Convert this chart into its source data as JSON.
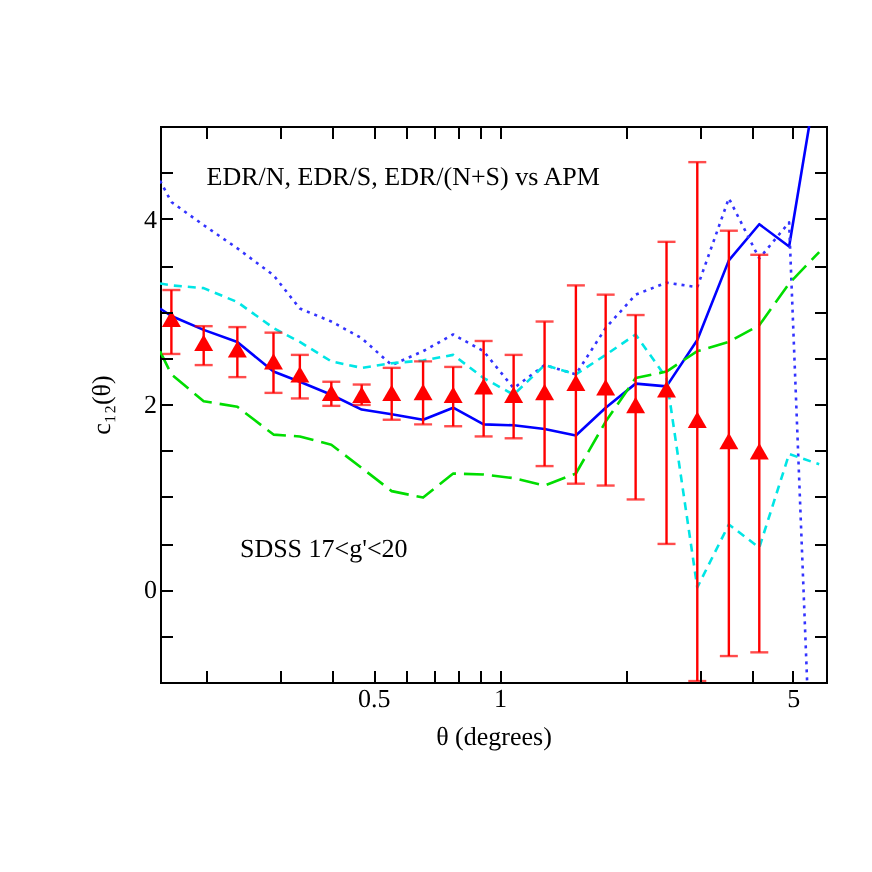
{
  "chart_data": {
    "type": "line",
    "xlabel": "θ  (degrees)",
    "ylabel": "c₁₂(θ)",
    "log": "x",
    "grid": false,
    "legend": false,
    "annotations": [
      "EDR/N, EDR/S, EDR/(N+S) vs APM",
      "SDSS   17<g'<20"
    ],
    "xlim": [
      0.155,
      6.0
    ],
    "xticks": [
      {
        "value": 0.2,
        "label": null
      },
      {
        "value": 0.3,
        "label": null
      },
      {
        "value": 0.4,
        "label": null
      },
      0.5,
      {
        "value": 0.6,
        "label": null
      },
      {
        "value": 0.7,
        "label": null
      },
      {
        "value": 0.8,
        "label": null
      },
      {
        "value": 0.9,
        "label": null
      },
      1,
      {
        "value": 2,
        "label": null
      },
      {
        "value": 3,
        "label": null
      },
      {
        "value": 4,
        "label": null
      },
      5
    ],
    "ylim": [
      -1,
      5
    ],
    "yticks": [
      {
        "value": -0.5,
        "label": null
      },
      0,
      {
        "value": 0.5,
        "label": null
      },
      {
        "value": 1,
        "label": null
      },
      {
        "value": 1.5,
        "label": null
      },
      2,
      {
        "value": 2.5,
        "label": null
      },
      {
        "value": 3,
        "label": null
      },
      {
        "value": 3.5,
        "label": null
      },
      4,
      {
        "value": 4.5,
        "label": null
      }
    ],
    "series": [
      {
        "color": "#0000ff",
        "line_style": "solid",
        "x": [
          0.155,
          0.165,
          0.197,
          0.237,
          0.289,
          0.334,
          0.397,
          0.469,
          0.553,
          0.657,
          0.775,
          0.916,
          1.08,
          1.28,
          1.52,
          1.79,
          2.11,
          2.5,
          2.96,
          3.52,
          4.16,
          4.9,
          5.47
        ],
        "values": [
          3.03,
          2.95,
          2.8,
          2.67,
          2.35,
          2.24,
          2.1,
          1.94,
          1.89,
          1.83,
          1.96,
          1.78,
          1.77,
          1.73,
          1.66,
          1.96,
          2.22,
          2.19,
          2.69,
          3.55,
          3.94,
          3.7,
          5.0
        ]
      },
      {
        "color": "#3333ff",
        "line_style": "dotted",
        "x": [
          0.155,
          0.165,
          0.197,
          0.237,
          0.289,
          0.334,
          0.397,
          0.469,
          0.553,
          0.657,
          0.775,
          0.916,
          1.08,
          1.28,
          1.52,
          1.79,
          2.11,
          2.5,
          2.96,
          3.52,
          4.16,
          4.9,
          5.41
        ],
        "values": [
          4.41,
          4.18,
          3.93,
          3.68,
          3.39,
          3.03,
          2.89,
          2.71,
          2.42,
          2.57,
          2.75,
          2.57,
          2.17,
          2.42,
          2.32,
          2.82,
          3.18,
          3.31,
          3.26,
          4.22,
          3.57,
          3.96,
          -1
        ]
      },
      {
        "color": "#00e5e5",
        "line_style": "dashed",
        "x": [
          0.155,
          0.165,
          0.197,
          0.237,
          0.289,
          0.334,
          0.397,
          0.469,
          0.553,
          0.657,
          0.775,
          0.916,
          1.08,
          1.28,
          1.52,
          1.79,
          2.11,
          2.5,
          2.96,
          3.52,
          4.16,
          4.9,
          5.78
        ],
        "values": [
          3.3,
          3.28,
          3.25,
          3.1,
          2.82,
          2.67,
          2.46,
          2.39,
          2.44,
          2.47,
          2.53,
          2.28,
          2.1,
          2.42,
          2.32,
          2.53,
          2.75,
          2.28,
          0.02,
          0.7,
          0.45,
          1.46,
          1.35
        ]
      },
      {
        "color": "#00dd00",
        "line_style": "dashed",
        "x": [
          0.155,
          0.165,
          0.197,
          0.237,
          0.289,
          0.334,
          0.397,
          0.469,
          0.553,
          0.657,
          0.775,
          0.916,
          1.08,
          1.28,
          1.52,
          1.79,
          2.11,
          2.5,
          2.96,
          3.52,
          4.16,
          4.9,
          5.78
        ],
        "values": [
          2.57,
          2.32,
          2.03,
          1.97,
          1.67,
          1.65,
          1.56,
          1.31,
          1.06,
          0.99,
          1.25,
          1.24,
          1.2,
          1.12,
          1.25,
          1.81,
          2.28,
          2.35,
          2.57,
          2.67,
          2.85,
          3.3,
          3.64
        ]
      },
      {
        "type": "scatter",
        "color": "#ff0000",
        "marker": "triangle",
        "x": [
          0.165,
          0.197,
          0.237,
          0.289,
          0.334,
          0.397,
          0.469,
          0.553,
          0.657,
          0.775,
          0.916,
          1.08,
          1.28,
          1.52,
          1.79,
          2.11,
          2.5,
          2.96,
          3.52,
          4.16
        ],
        "values": [
          2.92,
          2.66,
          2.59,
          2.46,
          2.32,
          2.12,
          2.1,
          2.12,
          2.13,
          2.1,
          2.19,
          2.1,
          2.13,
          2.23,
          2.18,
          1.99,
          2.16,
          1.83,
          1.6,
          1.49
        ],
        "errors": [
          [
            2.54,
            3.23
          ],
          [
            2.42,
            2.84
          ],
          [
            2.29,
            2.83
          ],
          [
            2.12,
            2.77
          ],
          [
            2.06,
            2.53
          ],
          [
            1.98,
            2.24
          ],
          [
            1.99,
            2.21
          ],
          [
            1.83,
            2.39
          ],
          [
            1.78,
            2.46
          ],
          [
            1.76,
            2.4
          ],
          [
            1.65,
            2.68
          ],
          [
            1.63,
            2.53
          ],
          [
            1.33,
            2.89
          ],
          [
            1.14,
            3.28
          ],
          [
            1.12,
            3.18
          ],
          [
            0.97,
            2.96
          ],
          [
            0.49,
            3.75
          ],
          [
            -0.99,
            4.61
          ],
          [
            -0.72,
            3.87
          ],
          [
            -0.68,
            3.61
          ]
        ]
      }
    ]
  }
}
